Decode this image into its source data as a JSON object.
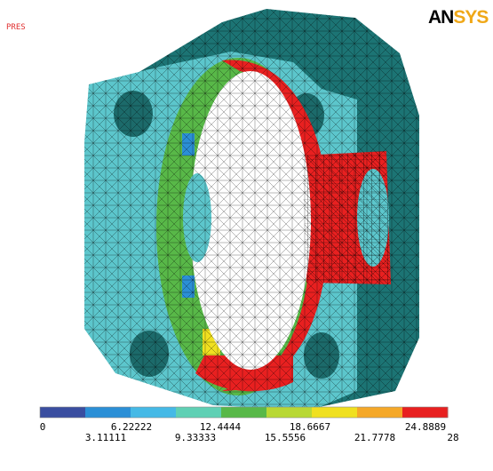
{
  "header": {
    "result_label": "PRES",
    "logo": [
      "AN",
      "SYS"
    ]
  },
  "legend": {
    "colors": [
      "#3a4ea0",
      "#2b8fd6",
      "#45b9e6",
      "#5fd0b4",
      "#58b848",
      "#b8d834",
      "#f0e020",
      "#f5a828",
      "#e82020"
    ],
    "labels_top": [
      "0",
      "6.22222",
      "12.4444",
      "18.6667",
      "24.8889"
    ],
    "labels_bottom": [
      "3.11111",
      "9.33333",
      "15.5556",
      "21.7778",
      "28"
    ]
  }
}
